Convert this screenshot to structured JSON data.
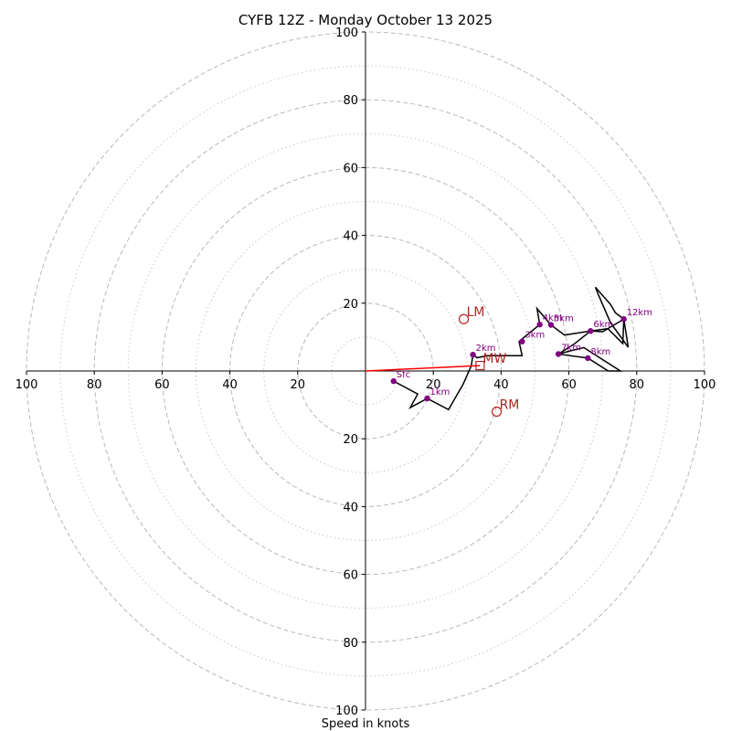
{
  "chart_data": {
    "type": "hodograph",
    "title": "CYFB 12Z - Monday October 13 2025",
    "xlabel": "Speed in knots",
    "range": 100,
    "ring_major": [
      20,
      40,
      60,
      80,
      100
    ],
    "ring_minor": [
      10,
      30,
      50,
      70,
      90
    ],
    "x_ticks": [
      {
        "value": -100,
        "label": "100"
      },
      {
        "value": -80,
        "label": "80"
      },
      {
        "value": -60,
        "label": "60"
      },
      {
        "value": -40,
        "label": "40"
      },
      {
        "value": -20,
        "label": "20"
      },
      {
        "value": 20,
        "label": "20"
      },
      {
        "value": 40,
        "label": "40"
      },
      {
        "value": 60,
        "label": "60"
      },
      {
        "value": 80,
        "label": "80"
      },
      {
        "value": 100,
        "label": "100"
      }
    ],
    "y_ticks": [
      {
        "value": 100,
        "label": "100"
      },
      {
        "value": 80,
        "label": "80"
      },
      {
        "value": 60,
        "label": "60"
      },
      {
        "value": 40,
        "label": "40"
      },
      {
        "value": 20,
        "label": "20"
      },
      {
        "value": -20,
        "label": "20"
      },
      {
        "value": -40,
        "label": "40"
      },
      {
        "value": -60,
        "label": "60"
      },
      {
        "value": -80,
        "label": "80"
      },
      {
        "value": -100,
        "label": "100"
      }
    ],
    "trace_color": "#000000",
    "trace": [
      [
        8.3,
        -3.0
      ],
      [
        15.4,
        -6.8
      ],
      [
        13.2,
        -10.8
      ],
      [
        18.2,
        -8.1
      ],
      [
        24.5,
        -11.4
      ],
      [
        28.8,
        -3.9
      ],
      [
        31.2,
        1.5
      ],
      [
        31.7,
        4.8
      ],
      [
        32.9,
        3.9
      ],
      [
        36.0,
        4.5
      ],
      [
        46.2,
        4.5
      ],
      [
        45.3,
        8.7
      ],
      [
        51.4,
        13.7
      ],
      [
        50.6,
        18.4
      ],
      [
        54.7,
        13.6
      ],
      [
        58.7,
        10.6
      ],
      [
        66.4,
        11.8
      ],
      [
        71.5,
        12.5
      ],
      [
        75.9,
        8.1
      ],
      [
        76.2,
        15.3
      ],
      [
        77.5,
        7.0
      ],
      [
        72.3,
        14.2
      ],
      [
        68.7,
        22.5
      ],
      [
        67.8,
        24.7
      ],
      [
        68.0,
        24.5
      ],
      [
        72.3,
        19.6
      ],
      [
        73.7,
        17.2
      ],
      [
        76.2,
        15.3
      ],
      [
        70.0,
        11.6
      ],
      [
        66.4,
        11.8
      ],
      [
        61.5,
        7.9
      ],
      [
        56.9,
        5.0
      ],
      [
        65.6,
        3.8
      ],
      [
        71.6,
        0.0
      ],
      [
        75.2,
        0.0
      ],
      [
        64.4,
        6.9
      ],
      [
        60.7,
        6.0
      ],
      [
        56.9,
        5.0
      ]
    ],
    "heights": [
      {
        "label": "Sfc",
        "u": 8.3,
        "v": -3.0
      },
      {
        "label": "1km",
        "u": 18.2,
        "v": -8.1
      },
      {
        "label": "2km",
        "u": 31.7,
        "v": 4.8
      },
      {
        "label": "3km",
        "u": 46.2,
        "v": 8.7
      },
      {
        "label": "4km",
        "u": 51.4,
        "v": 13.7
      },
      {
        "label": "5km",
        "u": 54.7,
        "v": 13.6
      },
      {
        "label": "6km",
        "u": 66.4,
        "v": 11.8
      },
      {
        "label": "7km",
        "u": 56.9,
        "v": 5.0
      },
      {
        "label": "8km",
        "u": 65.6,
        "v": 3.8
      },
      {
        "label": "12km",
        "u": 76.2,
        "v": 15.3
      }
    ],
    "height_color": "#800080",
    "motions": [
      {
        "label": "LM",
        "u": 29.0,
        "v": 15.3,
        "marker": "circle"
      },
      {
        "label": "RM",
        "u": 38.7,
        "v": -12.0,
        "marker": "circle"
      },
      {
        "label": "MW",
        "u": 33.8,
        "v": 1.6,
        "marker": "square"
      }
    ],
    "motion_color": "#b22222",
    "shear_vector": {
      "u0": 0,
      "v0": 0,
      "u1": 33.8,
      "v1": 1.6,
      "color": "#ff0000"
    }
  }
}
